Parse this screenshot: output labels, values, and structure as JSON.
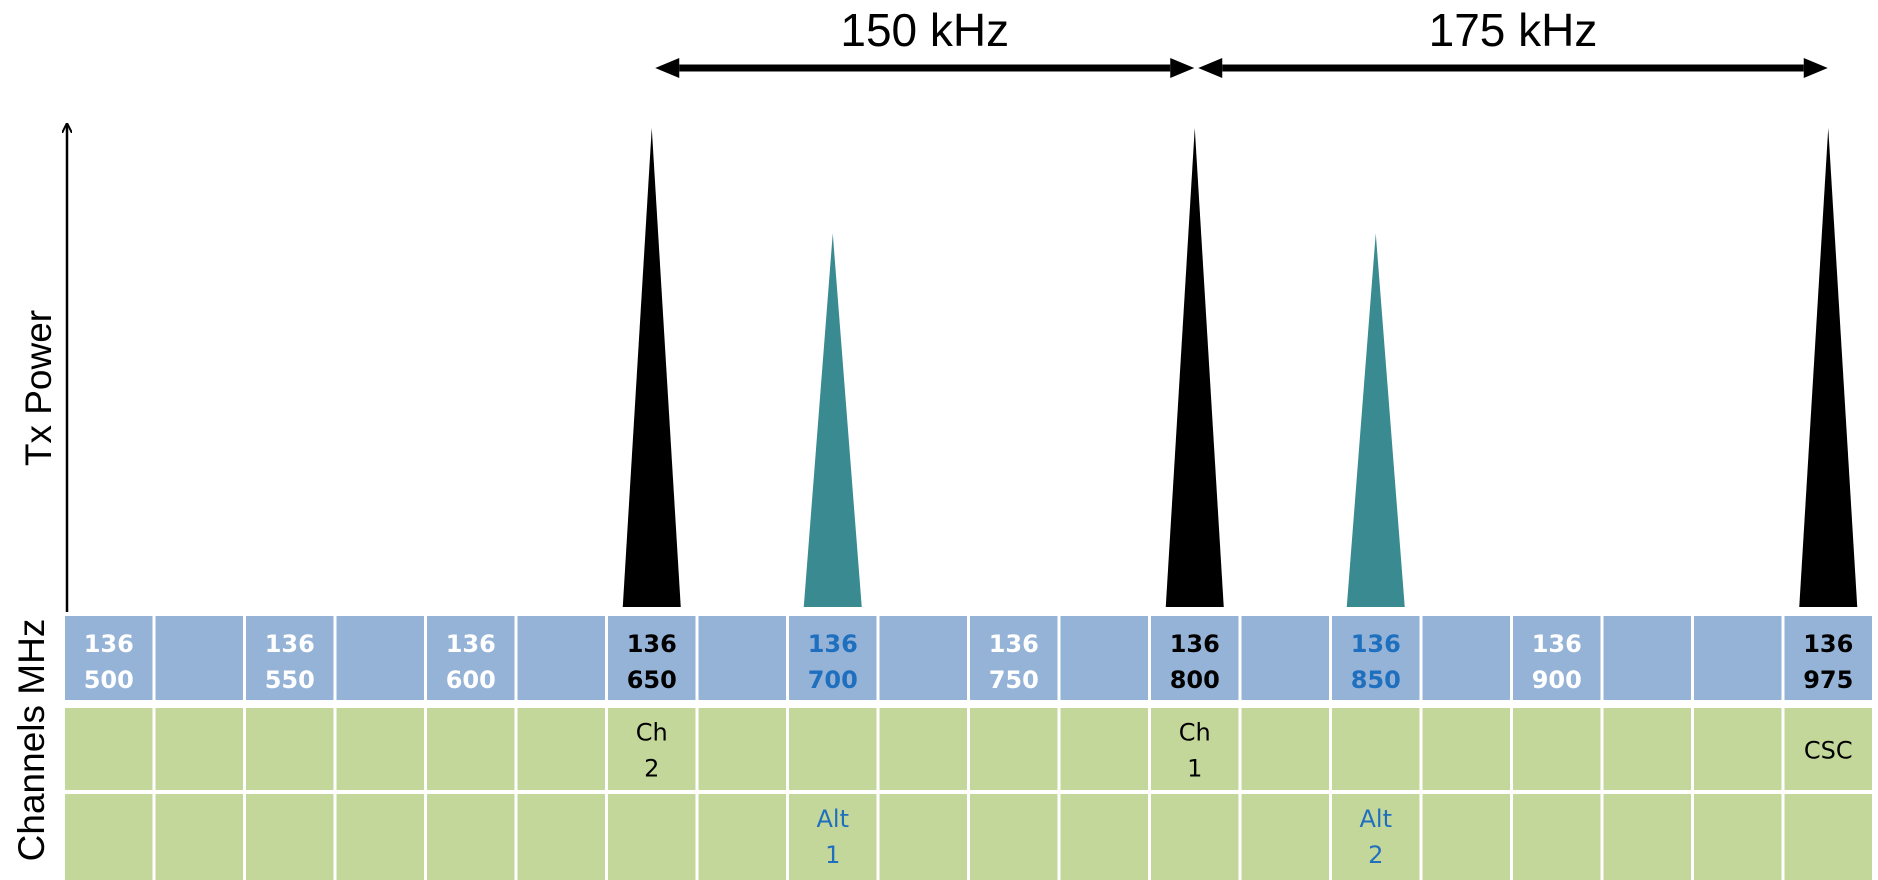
{
  "spans": [
    {
      "label": "150 kHz",
      "from": 650,
      "to": 800
    },
    {
      "label": "175 kHz",
      "from": 800,
      "to": 975
    }
  ],
  "axis": {
    "y_title": "Tx Power",
    "row_title": "Channels MHz"
  },
  "frequency_cells": [
    {
      "line1": "136",
      "line2": "500",
      "style": "white"
    },
    {
      "line1": "",
      "line2": "",
      "style": "white"
    },
    {
      "line1": "136",
      "line2": "550",
      "style": "white"
    },
    {
      "line1": "",
      "line2": "",
      "style": "white"
    },
    {
      "line1": "136",
      "line2": "600",
      "style": "white"
    },
    {
      "line1": "",
      "line2": "",
      "style": "white"
    },
    {
      "line1": "136",
      "line2": "650",
      "style": "black"
    },
    {
      "line1": "",
      "line2": "",
      "style": "white"
    },
    {
      "line1": "136",
      "line2": "700",
      "style": "blue"
    },
    {
      "line1": "",
      "line2": "",
      "style": "white"
    },
    {
      "line1": "136",
      "line2": "750",
      "style": "white"
    },
    {
      "line1": "",
      "line2": "",
      "style": "white"
    },
    {
      "line1": "136",
      "line2": "800",
      "style": "black"
    },
    {
      "line1": "",
      "line2": "",
      "style": "white"
    },
    {
      "line1": "136",
      "line2": "850",
      "style": "blue"
    },
    {
      "line1": "",
      "line2": "",
      "style": "white"
    },
    {
      "line1": "136",
      "line2": "900",
      "style": "white"
    },
    {
      "line1": "",
      "line2": "",
      "style": "white"
    },
    {
      "line1": "",
      "line2": "",
      "style": "white"
    },
    {
      "line1": "136",
      "line2": "975",
      "style": "black"
    }
  ],
  "primary_channels": [
    {
      "col": 6,
      "lines": [
        "Ch",
        "2"
      ]
    },
    {
      "col": 12,
      "lines": [
        "Ch",
        "1"
      ]
    },
    {
      "col": 19,
      "lines": [
        "CSC"
      ]
    }
  ],
  "alternate_channels": [
    {
      "col": 8,
      "lines": [
        "Alt",
        "1"
      ]
    },
    {
      "col": 14,
      "lines": [
        "Alt",
        "2"
      ]
    }
  ],
  "carriers": [
    {
      "col": 6,
      "type": "primary",
      "level": 1.0
    },
    {
      "col": 8,
      "type": "alternate",
      "level": 0.78
    },
    {
      "col": 12,
      "type": "primary",
      "level": 1.0
    },
    {
      "col": 14,
      "type": "alternate",
      "level": 0.78
    },
    {
      "col": 19,
      "type": "primary",
      "level": 1.0
    }
  ],
  "colors": {
    "freq_row": "#95b3d7",
    "channel_rows": "#c4d79b",
    "primary_carrier": "#000000",
    "alternate_carrier": "#3a8b91",
    "blue_text": "#1f6fbf",
    "white_text": "#ffffff",
    "black_text": "#000000"
  }
}
